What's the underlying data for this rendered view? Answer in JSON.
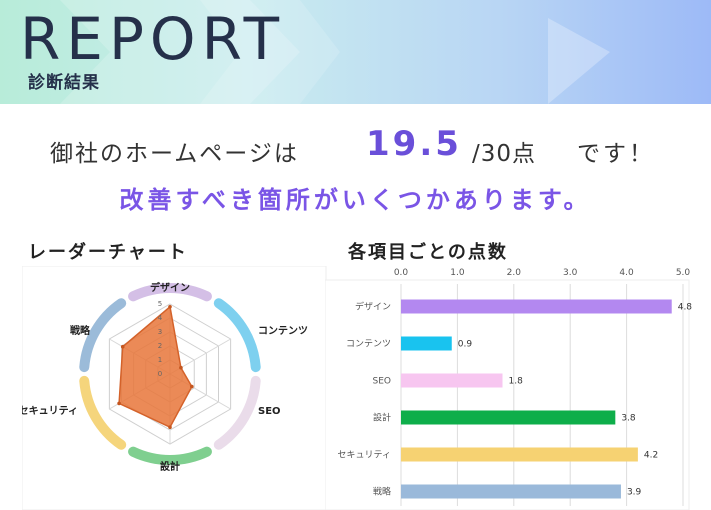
{
  "header": {
    "title": "REPORT",
    "subtitle": "診断結果"
  },
  "score": {
    "prefix": "御社のホームページは",
    "value": "19.5",
    "denominator": "/30点",
    "suffix": "です！"
  },
  "verdict": "改善すべき箇所がいくつかあります。",
  "colors": {
    "accent": "#6a4fd9",
    "verdict": "#7a55e6",
    "radar_fill": "#e8763a"
  },
  "radar_section": {
    "title": "レーダーチャート"
  },
  "bar_section": {
    "title": "各項目ごとの点数"
  },
  "chart_data": [
    {
      "type": "radar",
      "title": "",
      "categories": [
        "デザイン",
        "コンテンツ",
        "SEO",
        "設計",
        "セキュリティ",
        "戦略"
      ],
      "values": [
        4.8,
        0.9,
        1.8,
        3.8,
        4.2,
        3.9
      ],
      "rlim": [
        0,
        5
      ],
      "ticks": [
        "0",
        "1",
        "2",
        "3",
        "4",
        "5"
      ],
      "segment_colors": [
        "#d4bfe6",
        "#7ed0ef",
        "#eadcea",
        "#7fcf8f",
        "#f5d57c",
        "#9bbbd9"
      ]
    },
    {
      "type": "bar",
      "orientation": "horizontal",
      "title": "",
      "categories": [
        "デザイン",
        "コンテンツ",
        "SEO",
        "設計",
        "セキュリティ",
        "戦略"
      ],
      "values": [
        4.8,
        0.9,
        1.8,
        3.8,
        4.2,
        3.9
      ],
      "value_labels": [
        "4.8",
        "0.9",
        "1.8",
        "3.8",
        "4.2",
        "3.9"
      ],
      "colors": [
        "#b388f0",
        "#19c3ef",
        "#f7c6f0",
        "#0eae4a",
        "#f6d272",
        "#9ab9da"
      ],
      "xlim": [
        0,
        5
      ],
      "xticks": [
        "0.0",
        "1.0",
        "2.0",
        "3.0",
        "4.0",
        "5.0"
      ],
      "grid": true
    }
  ]
}
